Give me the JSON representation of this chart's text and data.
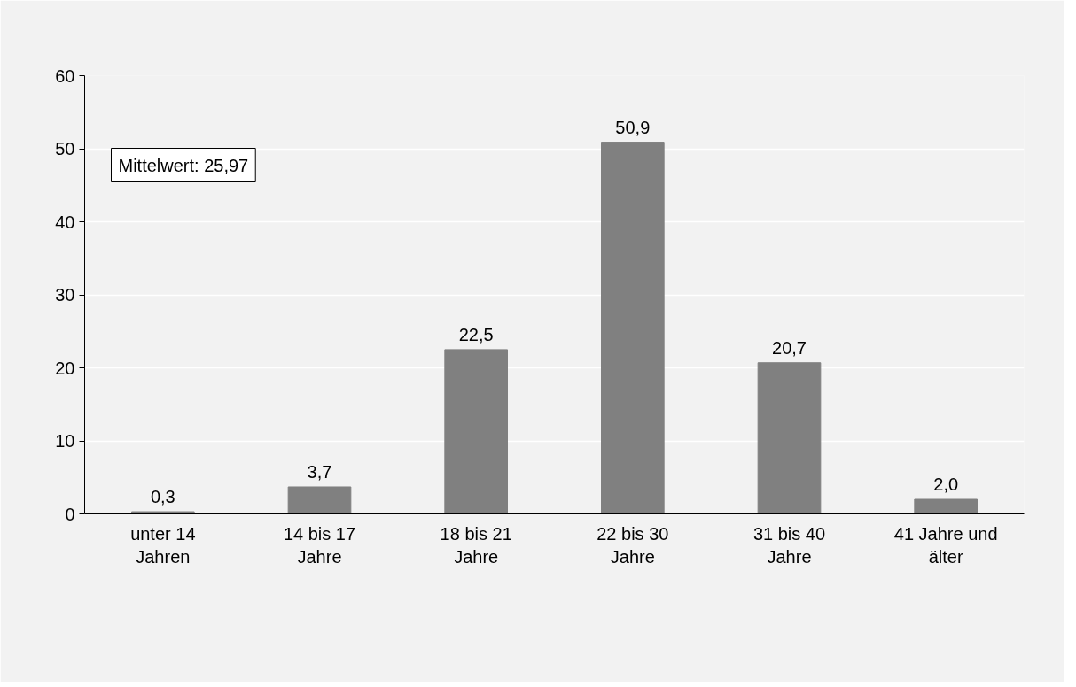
{
  "chart_data": {
    "type": "bar",
    "categories": [
      "unter 14 Jahren",
      "14 bis 17 Jahre",
      "18 bis 21 Jahre",
      "22 bis 30 Jahre",
      "31 bis 40 Jahre",
      "41 Jahre und älter"
    ],
    "values": [
      0.3,
      3.7,
      22.5,
      50.9,
      20.7,
      2.0
    ],
    "value_labels": [
      "0,3",
      "3,7",
      "22,5",
      "50,9",
      "20,7",
      "2,0"
    ],
    "color": "#808080",
    "ylim": [
      0,
      60
    ],
    "yticks": [
      0,
      10,
      20,
      30,
      40,
      50,
      60
    ],
    "grid": "y",
    "annotations": [
      "Mittelwert: 25,97"
    ]
  }
}
